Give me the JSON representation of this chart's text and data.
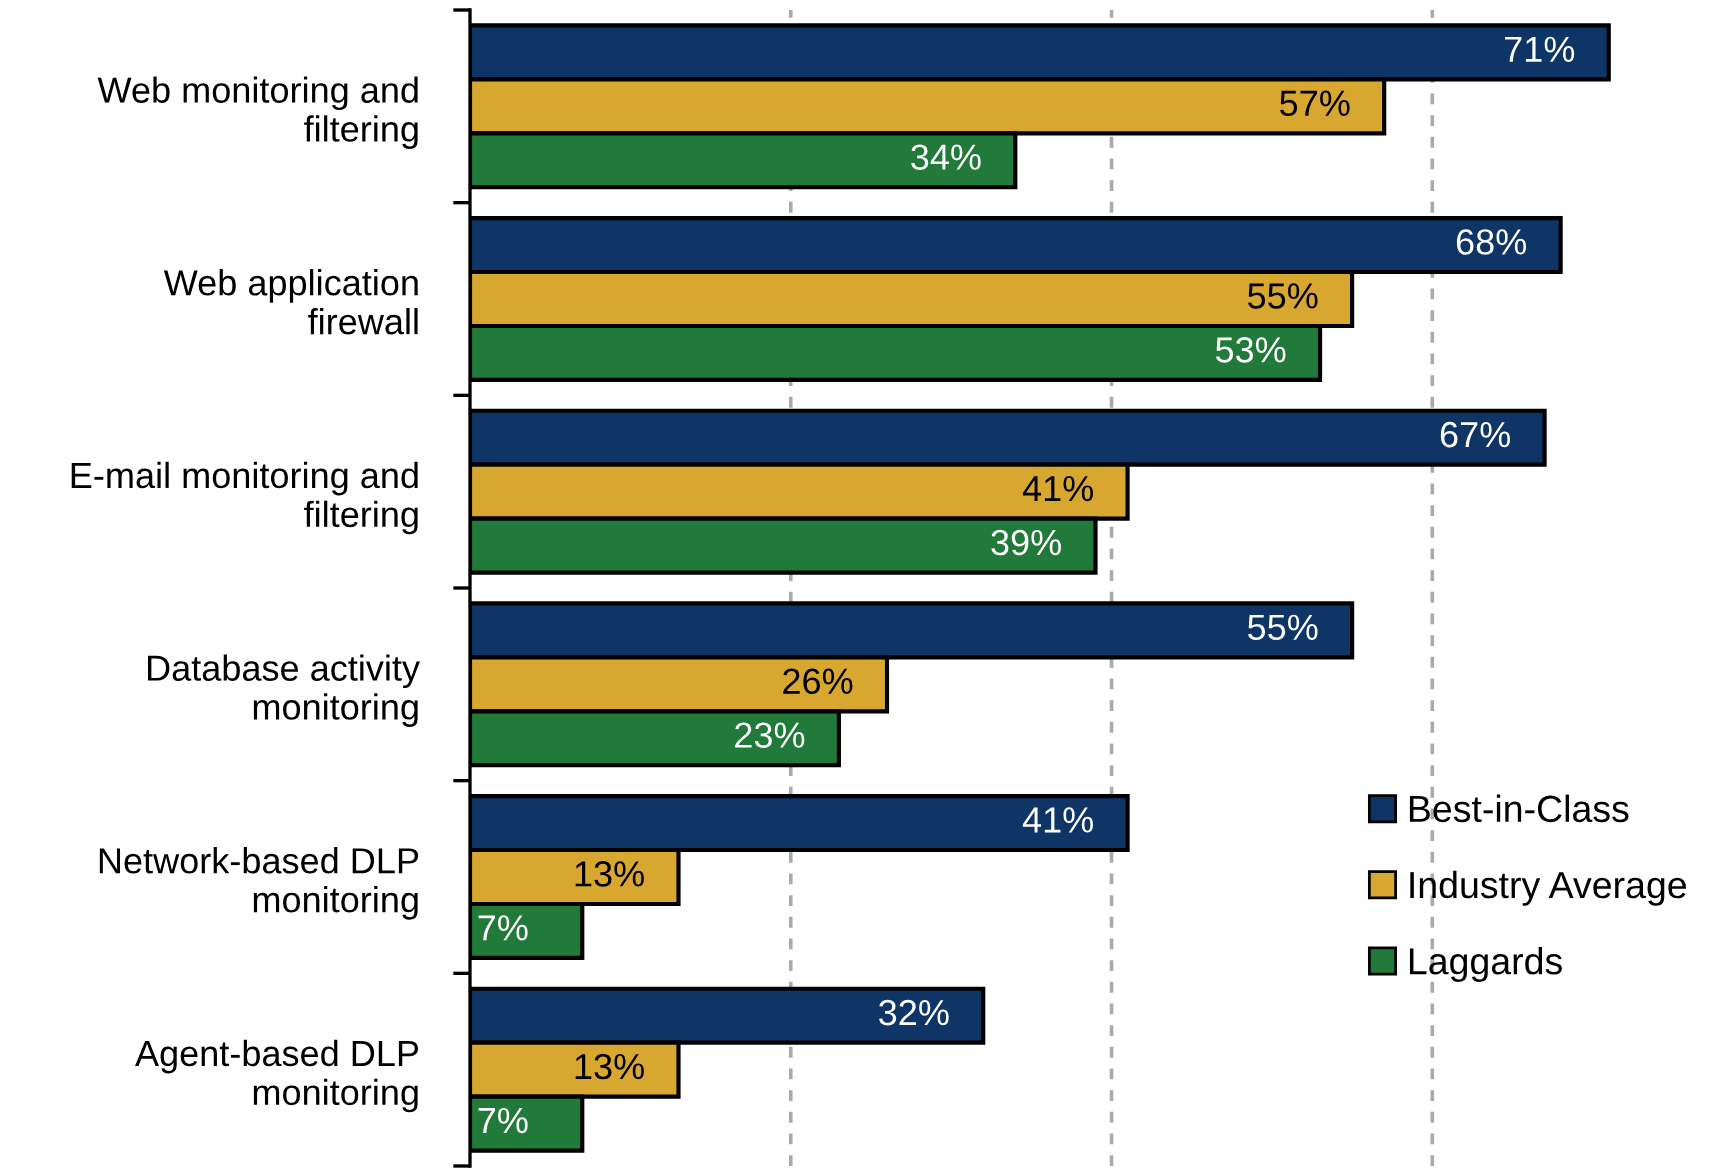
{
  "chart_data": {
    "type": "bar",
    "orientation": "horizontal",
    "categories": [
      "Web monitoring and\nfiltering",
      "Web application\nfirewall",
      "E-mail monitoring and\nfiltering",
      "Database activity\nmonitoring",
      "Network-based DLP\nmonitoring",
      "Agent-based DLP\nmonitoring"
    ],
    "series": [
      {
        "name": "Best-in-Class",
        "color": "#0f3567",
        "values": [
          71,
          68,
          67,
          55,
          41,
          32
        ],
        "value_labels": [
          "71%",
          "68%",
          "67%",
          "55%",
          "41%",
          "32%"
        ]
      },
      {
        "name": "Industry Average",
        "color": "#d8a730",
        "values": [
          57,
          55,
          41,
          26,
          13,
          13
        ],
        "value_labels": [
          "57%",
          "55%",
          "41%",
          "26%",
          "13%",
          "13%"
        ]
      },
      {
        "name": "Laggards",
        "color": "#217a39",
        "values": [
          34,
          53,
          39,
          23,
          7,
          7
        ],
        "value_labels": [
          "34%",
          "53%",
          "39%",
          "23%",
          "7%",
          "7%"
        ]
      }
    ],
    "xticks": [
      {
        "value": 20,
        "label": null
      },
      {
        "value": 40,
        "label": null
      },
      {
        "value": 60,
        "label": null
      }
    ],
    "grid": "x",
    "tick_labels": "y",
    "legend": "bottom right"
  }
}
